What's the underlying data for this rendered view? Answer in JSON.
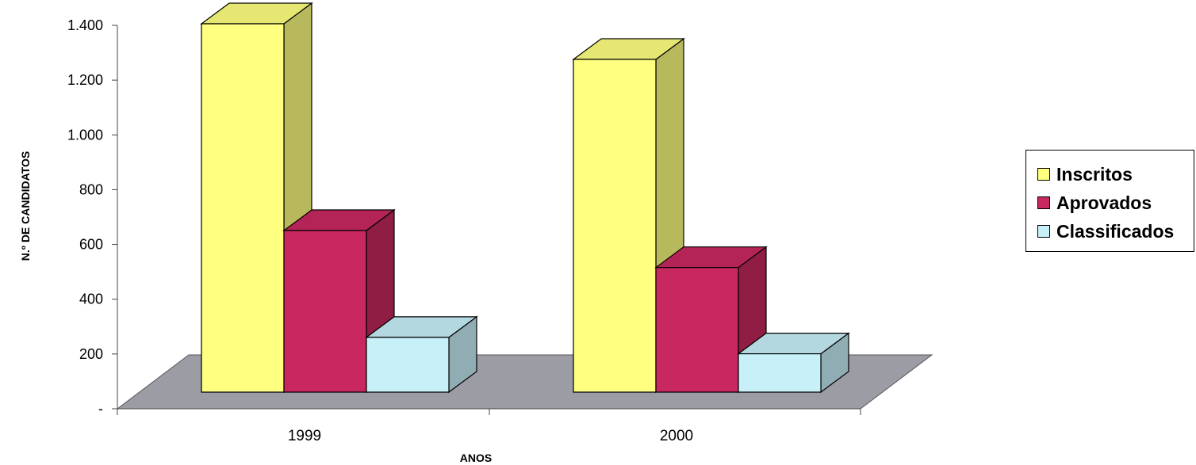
{
  "chart_data": {
    "type": "bar",
    "style": "3d-clustered-column",
    "categories": [
      "1999",
      "2000"
    ],
    "series": [
      {
        "name": "Inscritos",
        "values": [
          1345,
          1215
        ],
        "color": "#ffff80"
      },
      {
        "name": "Aprovados",
        "values": [
          590,
          455
        ],
        "color": "#c8285f"
      },
      {
        "name": "Classificados",
        "values": [
          200,
          140
        ],
        "color": "#c8f0f8"
      }
    ],
    "title": "",
    "xlabel": "ANOS",
    "ylabel": "N.º DE CANDIDATOS",
    "ylim": [
      0,
      1400
    ],
    "yticks": [
      {
        "value": 0,
        "label": "-"
      },
      {
        "value": 200,
        "label": "200"
      },
      {
        "value": 400,
        "label": "400"
      },
      {
        "value": 600,
        "label": "600"
      },
      {
        "value": 800,
        "label": "800"
      },
      {
        "value": 1000,
        "label": "1.000"
      },
      {
        "value": 1200,
        "label": "1.200"
      },
      {
        "value": 1400,
        "label": "1.400"
      }
    ],
    "legend_position": "right",
    "grid": false,
    "floor_color": "#9c9ca4"
  }
}
